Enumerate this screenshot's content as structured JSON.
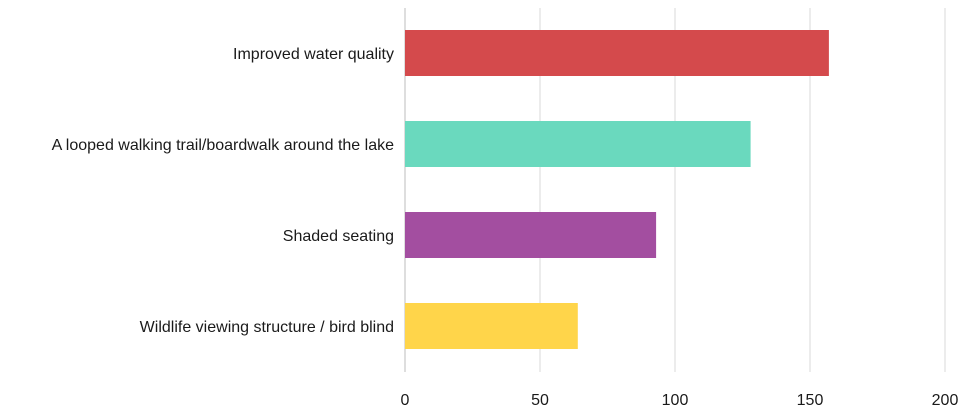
{
  "chart_data": {
    "type": "bar",
    "orientation": "horizontal",
    "title": "",
    "xlabel": "",
    "ylabel": "",
    "categories": [
      "Improved water quality",
      "A looped walking trail/boardwalk around the lake",
      "Shaded seating",
      "Wildlife viewing structure / bird blind"
    ],
    "values": [
      157,
      128,
      93,
      64
    ],
    "colors": [
      "#d44a4c",
      "#6ad9be",
      "#a34ea0",
      "#ffd54a"
    ],
    "xlim": [
      0,
      200
    ],
    "xticks": [
      0,
      50,
      100,
      150,
      200
    ],
    "grid": true,
    "legend": "none"
  }
}
